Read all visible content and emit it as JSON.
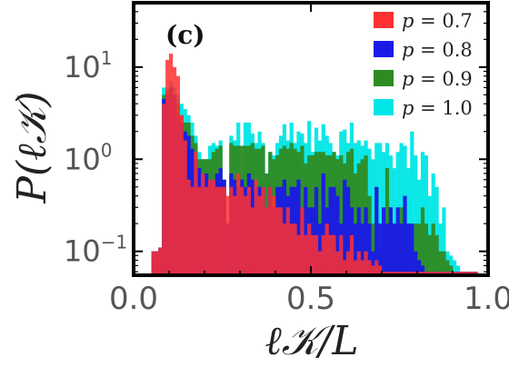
{
  "chart_data": {
    "type": "bar",
    "panel_label": "(c)",
    "xlabel": "ℓ𝒦/L",
    "ylabel": "P(ℓ𝒦)",
    "xlim": [
      0.0,
      1.0
    ],
    "ylim": [
      0.055,
      50
    ],
    "y_scale": "log",
    "x_ticks": [
      {
        "value": 0.0,
        "label": "0.0"
      },
      {
        "value": 0.5,
        "label": "0.5"
      },
      {
        "value": 1.0,
        "label": "1.0"
      }
    ],
    "y_ticks": [
      {
        "value": 0.1,
        "base": "10",
        "exp": "−1"
      },
      {
        "value": 1,
        "base": "10",
        "exp": "0"
      },
      {
        "value": 10,
        "base": "10",
        "exp": "1"
      }
    ],
    "legend_position": "top-right",
    "bin_width": 0.01,
    "bin_start": 0.04,
    "series": [
      {
        "name": "p = 1.0",
        "label_p": "p",
        "label_value": "= 1.0",
        "color": "#00e6e6",
        "values": [
          0,
          0.1,
          0.1,
          0.11,
          6,
          6,
          7,
          6,
          5,
          4,
          3.5,
          3,
          2.5,
          1.8,
          1.2,
          1,
          1,
          1.4,
          1.5,
          1.4,
          1.6,
          0.6,
          0.2,
          1.8,
          1.6,
          2.5,
          0.7,
          2.5,
          2.5,
          1.9,
          1.5,
          2,
          1.5,
          0.7,
          1.2,
          1.1,
          1.5,
          1.8,
          2.4,
          1.6,
          2.5,
          1.5,
          2,
          1.9,
          1.5,
          2.6,
          1.2,
          2.2,
          1.6,
          2.4,
          1.8,
          1.5,
          1.2,
          1.1,
          2,
          2.1,
          1.5,
          2.5,
          1.5,
          1.6,
          1.4,
          1.6,
          1.3,
          1,
          1.5,
          1.5,
          1.2,
          1.5,
          1.1,
          0.8,
          1.2,
          1.5,
          1.4,
          0.8,
          2,
          1.1,
          0.6,
          1.2,
          1.1,
          0.4,
          0.7,
          0.5,
          0.2,
          0.3,
          0.1,
          0.09,
          0.08,
          0.07,
          0.06,
          0.06,
          0.06,
          0.06,
          0.06
        ]
      },
      {
        "name": "p = 0.9",
        "label_p": "p",
        "label_value": "= 0.9",
        "color": "#2e8b23",
        "values": [
          0,
          0.1,
          0.1,
          0.11,
          5,
          5.5,
          6,
          5,
          4,
          3,
          2.5,
          2.5,
          1.8,
          1.5,
          1,
          1,
          1,
          1,
          1.2,
          1.3,
          1.4,
          0.6,
          0.2,
          1.5,
          1.4,
          1.4,
          1.4,
          1.4,
          1.4,
          1.5,
          1.3,
          1.3,
          1.4,
          0.7,
          1.2,
          1,
          1.1,
          1.3,
          1.4,
          1.3,
          1.5,
          1.3,
          1.2,
          1.4,
          0.9,
          1.1,
          1.1,
          1.2,
          1.2,
          1.2,
          1.1,
          1.1,
          1.2,
          1,
          1.1,
          0.9,
          1.2,
          1.3,
          0.7,
          0.9,
          1,
          1.1,
          0.4,
          0.2,
          0.5,
          0.1,
          0.2,
          0.8,
          0.3,
          0.2,
          0.2,
          0.3,
          0.2,
          0.2,
          0.15,
          0.2,
          0.2,
          0.3,
          0.2,
          0.15,
          0.2,
          0.15,
          0.1,
          0.1,
          0.08,
          0.07,
          0.06,
          0.06,
          0.06,
          0.06,
          0.06,
          0.06,
          0.06
        ]
      },
      {
        "name": "p = 0.8",
        "label_p": "p",
        "label_value": "= 0.8",
        "color": "#1a1ae6",
        "values": [
          0,
          0.1,
          0.1,
          0.11,
          4.5,
          5,
          6,
          5,
          3,
          2.5,
          2,
          1.8,
          1.3,
          1,
          0.8,
          0.7,
          0.7,
          0.6,
          0.6,
          0.7,
          0.8,
          0.6,
          0.2,
          0.7,
          0.6,
          0.5,
          0.6,
          0.5,
          0.7,
          0.6,
          0.5,
          0.5,
          0.5,
          0.3,
          0.5,
          0.3,
          0.5,
          0.5,
          0.6,
          0.4,
          0.5,
          0.5,
          0.6,
          0.3,
          0.5,
          0.3,
          0.3,
          0.5,
          0.2,
          0.7,
          0.3,
          0.5,
          0.5,
          0.4,
          0.2,
          0.6,
          0.5,
          0.3,
          0.2,
          0.3,
          0.2,
          0.3,
          0.2,
          0.1,
          0.5,
          0.2,
          0.3,
          0.2,
          0.3,
          0.2,
          0.3,
          0.2,
          0.4,
          0.2,
          0.2,
          0.1,
          0.08,
          0.07,
          0.06,
          0.06,
          0.06,
          0.06,
          0.06,
          0.06,
          0.06,
          0.06,
          0.06,
          0.06,
          0.06,
          0.06,
          0.06,
          0.06,
          0.06
        ]
      },
      {
        "name": "p = 0.7",
        "label_p": "p",
        "label_value": "= 0.7",
        "color": "#ff3030",
        "values": [
          0,
          0.1,
          0.1,
          0.11,
          4,
          12,
          14,
          10,
          8,
          3,
          1.6,
          0.6,
          0.5,
          1.2,
          0.5,
          0.7,
          0.5,
          0.6,
          0.6,
          0.5,
          0.5,
          0.5,
          0.4,
          0.5,
          0.4,
          0.7,
          0.5,
          0.4,
          0.5,
          0.3,
          0.6,
          0.4,
          0.5,
          0.3,
          0.5,
          0.4,
          0.3,
          0.3,
          0.2,
          0.3,
          0.2,
          0.2,
          0.15,
          0.3,
          0.15,
          0.2,
          0.15,
          0.15,
          0.1,
          0.15,
          0.2,
          0.15,
          0.15,
          0.1,
          0.15,
          0.08,
          0.1,
          0.15,
          0.08,
          0.1,
          0.08,
          0.1,
          0.08,
          0.07,
          0.08,
          0.07,
          0.06,
          0.06,
          0.06,
          0.06,
          0.06,
          0.06,
          0.06,
          0.06,
          0.06,
          0.06,
          0.06,
          0.06,
          0.06,
          0.06,
          0.06,
          0.06,
          0.06,
          0.06,
          0.06,
          0.06,
          0.06,
          0.06,
          0.06,
          0.06,
          0.06,
          0.06,
          0.06
        ]
      }
    ]
  }
}
